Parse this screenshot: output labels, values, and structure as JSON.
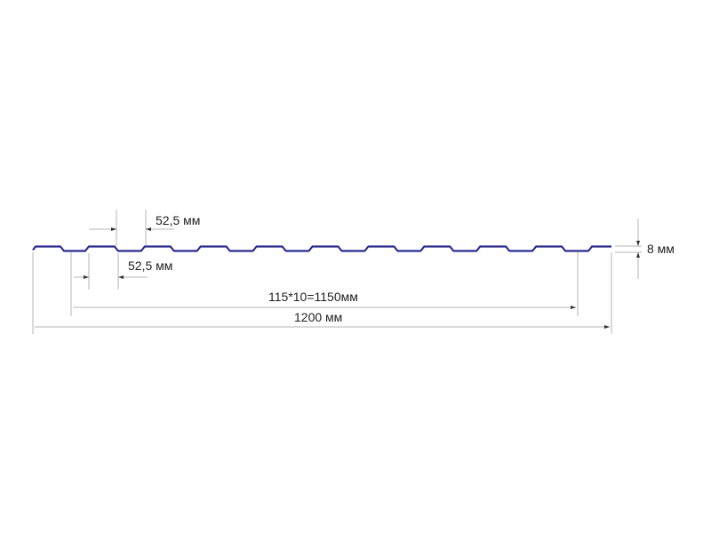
{
  "profile": {
    "color": "#2a2a8c",
    "rib_count": 11
  },
  "dimensions": {
    "rib_top_width": "52,5 мм",
    "rib_bottom_width": "52,5 мм",
    "height": "8 мм",
    "useful_width": "115*10=1150мм",
    "total_width": "1200 мм"
  },
  "line_color": "#aaaaaa"
}
